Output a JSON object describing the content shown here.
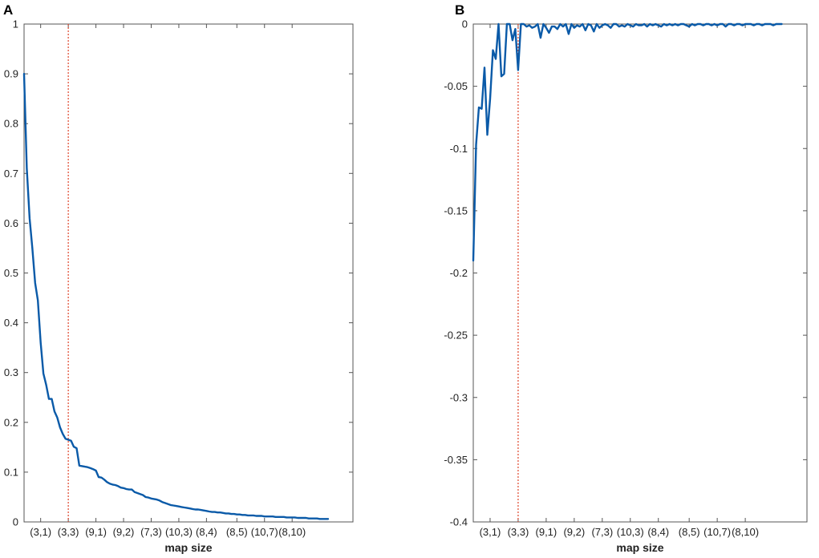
{
  "colors": {
    "series": "#0a5aa8",
    "reference": "#e0442a",
    "axis": "#555555"
  },
  "chart_data": [
    {
      "type": "line",
      "panel_label": "A",
      "xlabel": "map size",
      "ylabel": "",
      "ylim": [
        0,
        1
      ],
      "yticks": [
        0,
        0.1,
        0.2,
        0.3,
        0.4,
        0.5,
        0.6,
        0.7,
        0.8,
        0.9,
        1
      ],
      "ytick_labels": [
        "0",
        "0.1",
        "0.2",
        "0.3",
        "0.4",
        "0.5",
        "0.6",
        "0.7",
        "0.8",
        "0.9",
        "1"
      ],
      "xlim": [
        1,
        120
      ],
      "xticks": [
        7,
        17,
        27,
        37,
        47,
        57,
        67,
        78,
        88,
        98
      ],
      "xtick_labels": [
        "(3,1)",
        "(3,3)",
        "(9,1)",
        "(9,2)",
        "(7,3)",
        "(10,3)",
        "(8,4)",
        "(8,5)",
        "(10,7)",
        "(8,10)"
      ],
      "reference_line_x": 17,
      "grid": false,
      "series": [
        {
          "x": [
            1,
            2,
            3,
            4,
            5,
            6,
            7,
            8,
            9,
            10,
            11,
            12,
            13,
            14,
            15,
            16,
            17,
            18,
            19,
            20,
            21,
            22,
            23,
            24,
            25,
            26,
            27,
            28,
            29,
            30,
            31,
            32,
            33,
            34,
            35,
            36,
            37,
            38,
            39,
            40,
            41,
            42,
            43,
            44,
            45,
            46,
            47,
            48,
            49,
            50,
            51,
            52,
            53,
            54,
            55,
            56,
            57,
            58,
            59,
            60,
            61,
            62,
            63,
            64,
            65,
            66,
            67,
            68,
            69,
            70,
            71,
            72,
            73,
            74,
            75,
            76,
            77,
            78,
            79,
            80,
            81,
            82,
            83,
            84,
            85,
            86,
            87,
            88,
            89,
            90,
            91,
            92,
            93,
            94,
            95,
            96,
            97,
            98,
            99,
            100,
            101,
            102,
            103,
            104,
            105,
            106,
            107,
            108,
            109,
            110,
            111
          ],
          "values": [
            0.9,
            0.71,
            0.61,
            0.55,
            0.48,
            0.445,
            0.36,
            0.298,
            0.275,
            0.247,
            0.247,
            0.222,
            0.21,
            0.19,
            0.177,
            0.167,
            0.165,
            0.163,
            0.151,
            0.148,
            0.113,
            0.112,
            0.111,
            0.11,
            0.108,
            0.106,
            0.103,
            0.09,
            0.089,
            0.085,
            0.08,
            0.077,
            0.075,
            0.074,
            0.072,
            0.069,
            0.068,
            0.066,
            0.065,
            0.065,
            0.06,
            0.058,
            0.056,
            0.054,
            0.05,
            0.049,
            0.047,
            0.046,
            0.045,
            0.043,
            0.04,
            0.038,
            0.036,
            0.034,
            0.033,
            0.032,
            0.031,
            0.03,
            0.029,
            0.028,
            0.027,
            0.026,
            0.025,
            0.025,
            0.024,
            0.023,
            0.022,
            0.021,
            0.02,
            0.02,
            0.019,
            0.019,
            0.018,
            0.017,
            0.017,
            0.016,
            0.016,
            0.015,
            0.015,
            0.014,
            0.014,
            0.013,
            0.013,
            0.013,
            0.012,
            0.012,
            0.012,
            0.011,
            0.011,
            0.011,
            0.011,
            0.01,
            0.01,
            0.01,
            0.01,
            0.009,
            0.009,
            0.009,
            0.009,
            0.008,
            0.008,
            0.008,
            0.008,
            0.007,
            0.007,
            0.007,
            0.007,
            0.006,
            0.006,
            0.006,
            0.006
          ]
        }
      ]
    },
    {
      "type": "line",
      "panel_label": "B",
      "xlabel": "map size",
      "ylabel": "",
      "ylim": [
        -0.4,
        0
      ],
      "yticks": [
        -0.4,
        -0.35,
        -0.3,
        -0.25,
        -0.2,
        -0.15,
        -0.1,
        -0.05,
        0
      ],
      "ytick_labels": [
        "-0.4",
        "-0.35",
        "-0.3",
        "-0.25",
        "-0.2",
        "-0.15",
        "-0.1",
        "-0.05",
        "0"
      ],
      "xlim": [
        1,
        120
      ],
      "xticks": [
        7,
        17,
        27,
        37,
        47,
        57,
        67,
        78,
        88,
        98
      ],
      "xtick_labels": [
        "(3,1)",
        "(3,3)",
        "(9,1)",
        "(9,2)",
        "(7,3)",
        "(10,3)",
        "(8,4)",
        "(8,5)",
        "(10,7)",
        "(8,10)"
      ],
      "reference_line_x": 17,
      "grid": false,
      "series": [
        {
          "x": [
            1,
            2,
            3,
            4,
            5,
            6,
            7,
            8,
            9,
            10,
            11,
            12,
            13,
            14,
            15,
            16,
            17,
            18,
            19,
            20,
            21,
            22,
            23,
            24,
            25,
            26,
            27,
            28,
            29,
            30,
            31,
            32,
            33,
            34,
            35,
            36,
            37,
            38,
            39,
            40,
            41,
            42,
            43,
            44,
            45,
            46,
            47,
            48,
            49,
            50,
            51,
            52,
            53,
            54,
            55,
            56,
            57,
            58,
            59,
            60,
            61,
            62,
            63,
            64,
            65,
            66,
            67,
            68,
            69,
            70,
            71,
            72,
            73,
            74,
            75,
            76,
            77,
            78,
            79,
            80,
            81,
            82,
            83,
            84,
            85,
            86,
            87,
            88,
            89,
            90,
            91,
            92,
            93,
            94,
            95,
            96,
            97,
            98,
            99,
            100,
            101,
            102,
            103,
            104,
            105,
            106,
            107,
            108,
            109,
            110,
            111
          ],
          "values": [
            -0.19,
            -0.097,
            -0.067,
            -0.068,
            -0.035,
            -0.089,
            -0.06,
            -0.021,
            -0.028,
            0,
            -0.042,
            -0.04,
            0,
            0,
            -0.013,
            -0.004,
            -0.037,
            0,
            0,
            -0.002,
            -0.001,
            -0.003,
            -0.002,
            0,
            -0.011,
            0,
            -0.003,
            -0.007,
            -0.002,
            -0.002,
            -0.004,
            0,
            -0.002,
            0,
            -0.008,
            0,
            -0.003,
            -0.001,
            -0.002,
            0,
            -0.005,
            0,
            -0.001,
            -0.006,
            0,
            -0.003,
            -0.001,
            0,
            -0.001,
            -0.003,
            0,
            0,
            -0.002,
            -0.001,
            -0.002,
            0,
            -0.001,
            -0.002,
            0,
            -0.001,
            -0.001,
            0,
            -0.002,
            0,
            -0.001,
            0,
            -0.001,
            -0.002,
            0,
            -0.001,
            0,
            -0.001,
            0,
            -0.001,
            0,
            0,
            -0.001,
            -0.002,
            0,
            -0.001,
            0,
            0,
            -0.001,
            0,
            0,
            -0.001,
            0,
            -0.001,
            0,
            0,
            -0.002,
            0,
            0,
            -0.001,
            0,
            0,
            -0.001,
            0,
            0,
            0,
            -0.001,
            0,
            0,
            -0.001,
            0,
            0,
            0,
            -0.001,
            0,
            0,
            0
          ]
        }
      ]
    }
  ]
}
